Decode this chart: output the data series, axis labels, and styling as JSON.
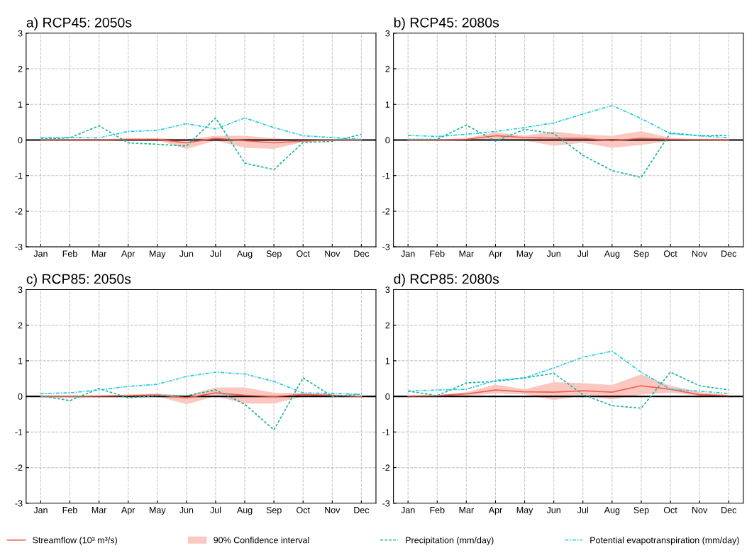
{
  "chart_data": [
    {
      "type": "line",
      "title": "a) RCP45: 2050s",
      "categories": [
        "Jan",
        "Feb",
        "Mar",
        "Apr",
        "May",
        "Jun",
        "Jul",
        "Aug",
        "Sep",
        "Oct",
        "Nov",
        "Dec"
      ],
      "ylim": [
        -3,
        3
      ],
      "yticks": [
        -3,
        -2,
        -1,
        0,
        1,
        2,
        3
      ],
      "grid": true,
      "legend": "bottom",
      "series": [
        {
          "name": "Streamflow (10³ m³/s)",
          "color": "#f4604f",
          "line_style": "solid",
          "values": [
            0,
            0,
            0,
            0.02,
            0.02,
            -0.08,
            0.05,
            -0.02,
            -0.08,
            -0.03,
            0,
            0
          ],
          "lower": [
            0,
            0,
            0,
            0,
            0,
            -0.25,
            -0.02,
            -0.22,
            -0.25,
            -0.06,
            -0.01,
            0
          ],
          "upper": [
            0,
            0.01,
            0.02,
            0.05,
            0.05,
            0.02,
            0.12,
            0.12,
            0.05,
            0.01,
            0.01,
            0
          ]
        },
        {
          "name": "Precipitation (mm/day)",
          "color": "#1ab39f",
          "line_style": "dashed",
          "values": [
            0.03,
            0.06,
            0.4,
            -0.08,
            -0.12,
            -0.17,
            0.62,
            -0.65,
            -0.83,
            -0.07,
            -0.04,
            0.16
          ]
        },
        {
          "name": "Potential evapotranspiration (mm/day)",
          "color": "#1ecbe1",
          "line_style": "dashdot",
          "values": [
            0.07,
            0.07,
            0.06,
            0.24,
            0.27,
            0.46,
            0.31,
            0.62,
            0.35,
            0.12,
            0.07,
            0.02
          ]
        }
      ],
      "ref_lines": [
        {
          "axis": "y",
          "value": 0,
          "color": "#000000"
        }
      ],
      "annotations": [
        "90% Confidence interval"
      ]
    },
    {
      "type": "line",
      "title": "b) RCP45: 2080s",
      "categories": [
        "Jan",
        "Feb",
        "Mar",
        "Apr",
        "May",
        "Jun",
        "Jul",
        "Aug",
        "Sep",
        "Oct",
        "Nov",
        "Dec"
      ],
      "ylim": [
        -3,
        3
      ],
      "yticks": [
        -3,
        -2,
        -1,
        0,
        1,
        2,
        3
      ],
      "grid": true,
      "series": [
        {
          "color": "#f4604f",
          "line_style": "solid",
          "values": [
            0,
            0,
            0.02,
            0.12,
            0.07,
            0.05,
            0.05,
            -0.02,
            0.05,
            0.02,
            0.01,
            0
          ],
          "lower": [
            0,
            0,
            0,
            0.02,
            -0.02,
            -0.16,
            -0.08,
            -0.22,
            -0.14,
            -0.03,
            -0.01,
            0
          ],
          "upper": [
            0,
            0.01,
            0.05,
            0.22,
            0.12,
            0.24,
            0.15,
            0.12,
            0.25,
            0.06,
            0.02,
            0.01
          ]
        },
        {
          "color": "#1ab39f",
          "line_style": "dashed",
          "values": [
            0.02,
            0.02,
            0.42,
            -0.03,
            0.3,
            0.18,
            -0.43,
            -0.86,
            -1.05,
            0.2,
            0.12,
            0.13
          ]
        },
        {
          "color": "#1ecbe1",
          "line_style": "dashdot",
          "values": [
            0.13,
            0.1,
            0.16,
            0.24,
            0.35,
            0.48,
            0.73,
            0.97,
            0.6,
            0.18,
            0.12,
            0.06
          ]
        }
      ],
      "ref_lines": [
        {
          "axis": "y",
          "value": 0,
          "color": "#000000"
        }
      ]
    },
    {
      "type": "line",
      "title": "c) RCP85: 2050s",
      "categories": [
        "Jan",
        "Feb",
        "Mar",
        "Apr",
        "May",
        "Jun",
        "Jul",
        "Aug",
        "Sep",
        "Oct",
        "Nov",
        "Dec"
      ],
      "ylim": [
        -3,
        3
      ],
      "yticks": [
        -3,
        -2,
        -1,
        0,
        1,
        2,
        3
      ],
      "grid": true,
      "series": [
        {
          "color": "#f4604f",
          "line_style": "solid",
          "values": [
            0,
            0,
            0.01,
            0.02,
            0.04,
            -0.04,
            0.1,
            0.03,
            0,
            0.05,
            0.03,
            0
          ],
          "lower": [
            0,
            0,
            0,
            0,
            0,
            -0.22,
            0,
            -0.2,
            -0.2,
            0,
            0,
            0
          ],
          "upper": [
            0,
            0.01,
            0.02,
            0.05,
            0.08,
            0.02,
            0.25,
            0.25,
            0.1,
            0.1,
            0.06,
            0
          ]
        },
        {
          "color": "#1ab39f",
          "line_style": "dashed",
          "values": [
            0.02,
            -0.12,
            0.22,
            -0.04,
            0.02,
            0.02,
            0.18,
            -0.22,
            -0.94,
            0.52,
            0.0,
            0.06
          ]
        },
        {
          "color": "#1ecbe1",
          "line_style": "dashdot",
          "values": [
            0.08,
            0.1,
            0.18,
            0.28,
            0.34,
            0.56,
            0.68,
            0.63,
            0.42,
            0.1,
            0.08,
            0.06
          ]
        }
      ],
      "ref_lines": [
        {
          "axis": "y",
          "value": 0,
          "color": "#000000"
        }
      ]
    },
    {
      "type": "line",
      "title": "d) RCP85: 2080s",
      "categories": [
        "Jan",
        "Feb",
        "Mar",
        "Apr",
        "May",
        "Jun",
        "Jul",
        "Aug",
        "Sep",
        "Oct",
        "Nov",
        "Dec"
      ],
      "ylim": [
        -3,
        3
      ],
      "yticks": [
        -3,
        -2,
        -1,
        0,
        1,
        2,
        3
      ],
      "grid": true,
      "series": [
        {
          "color": "#f4604f",
          "line_style": "solid",
          "values": [
            0.01,
            0.02,
            0.07,
            0.18,
            0.13,
            0.12,
            0.16,
            0.12,
            0.3,
            0.2,
            0.05,
            0.02
          ],
          "lower": [
            0,
            0,
            0.02,
            0.08,
            0.06,
            -0.1,
            0.02,
            -0.08,
            0.05,
            0.1,
            0.02,
            0
          ],
          "upper": [
            0.02,
            0.03,
            0.12,
            0.33,
            0.2,
            0.4,
            0.37,
            0.32,
            0.62,
            0.3,
            0.12,
            0.04
          ]
        },
        {
          "color": "#1ab39f",
          "line_style": "dashed",
          "values": [
            0.15,
            0.02,
            0.38,
            0.42,
            0.52,
            0.65,
            0.05,
            -0.26,
            -0.33,
            0.68,
            0.3,
            0.18
          ]
        },
        {
          "color": "#1ecbe1",
          "line_style": "dashdot",
          "values": [
            0.15,
            0.18,
            0.2,
            0.45,
            0.52,
            0.8,
            1.1,
            1.27,
            0.68,
            0.2,
            0.15,
            0.08
          ]
        }
      ],
      "ref_lines": [
        {
          "axis": "y",
          "value": 0,
          "color": "#000000"
        }
      ]
    }
  ]
}
